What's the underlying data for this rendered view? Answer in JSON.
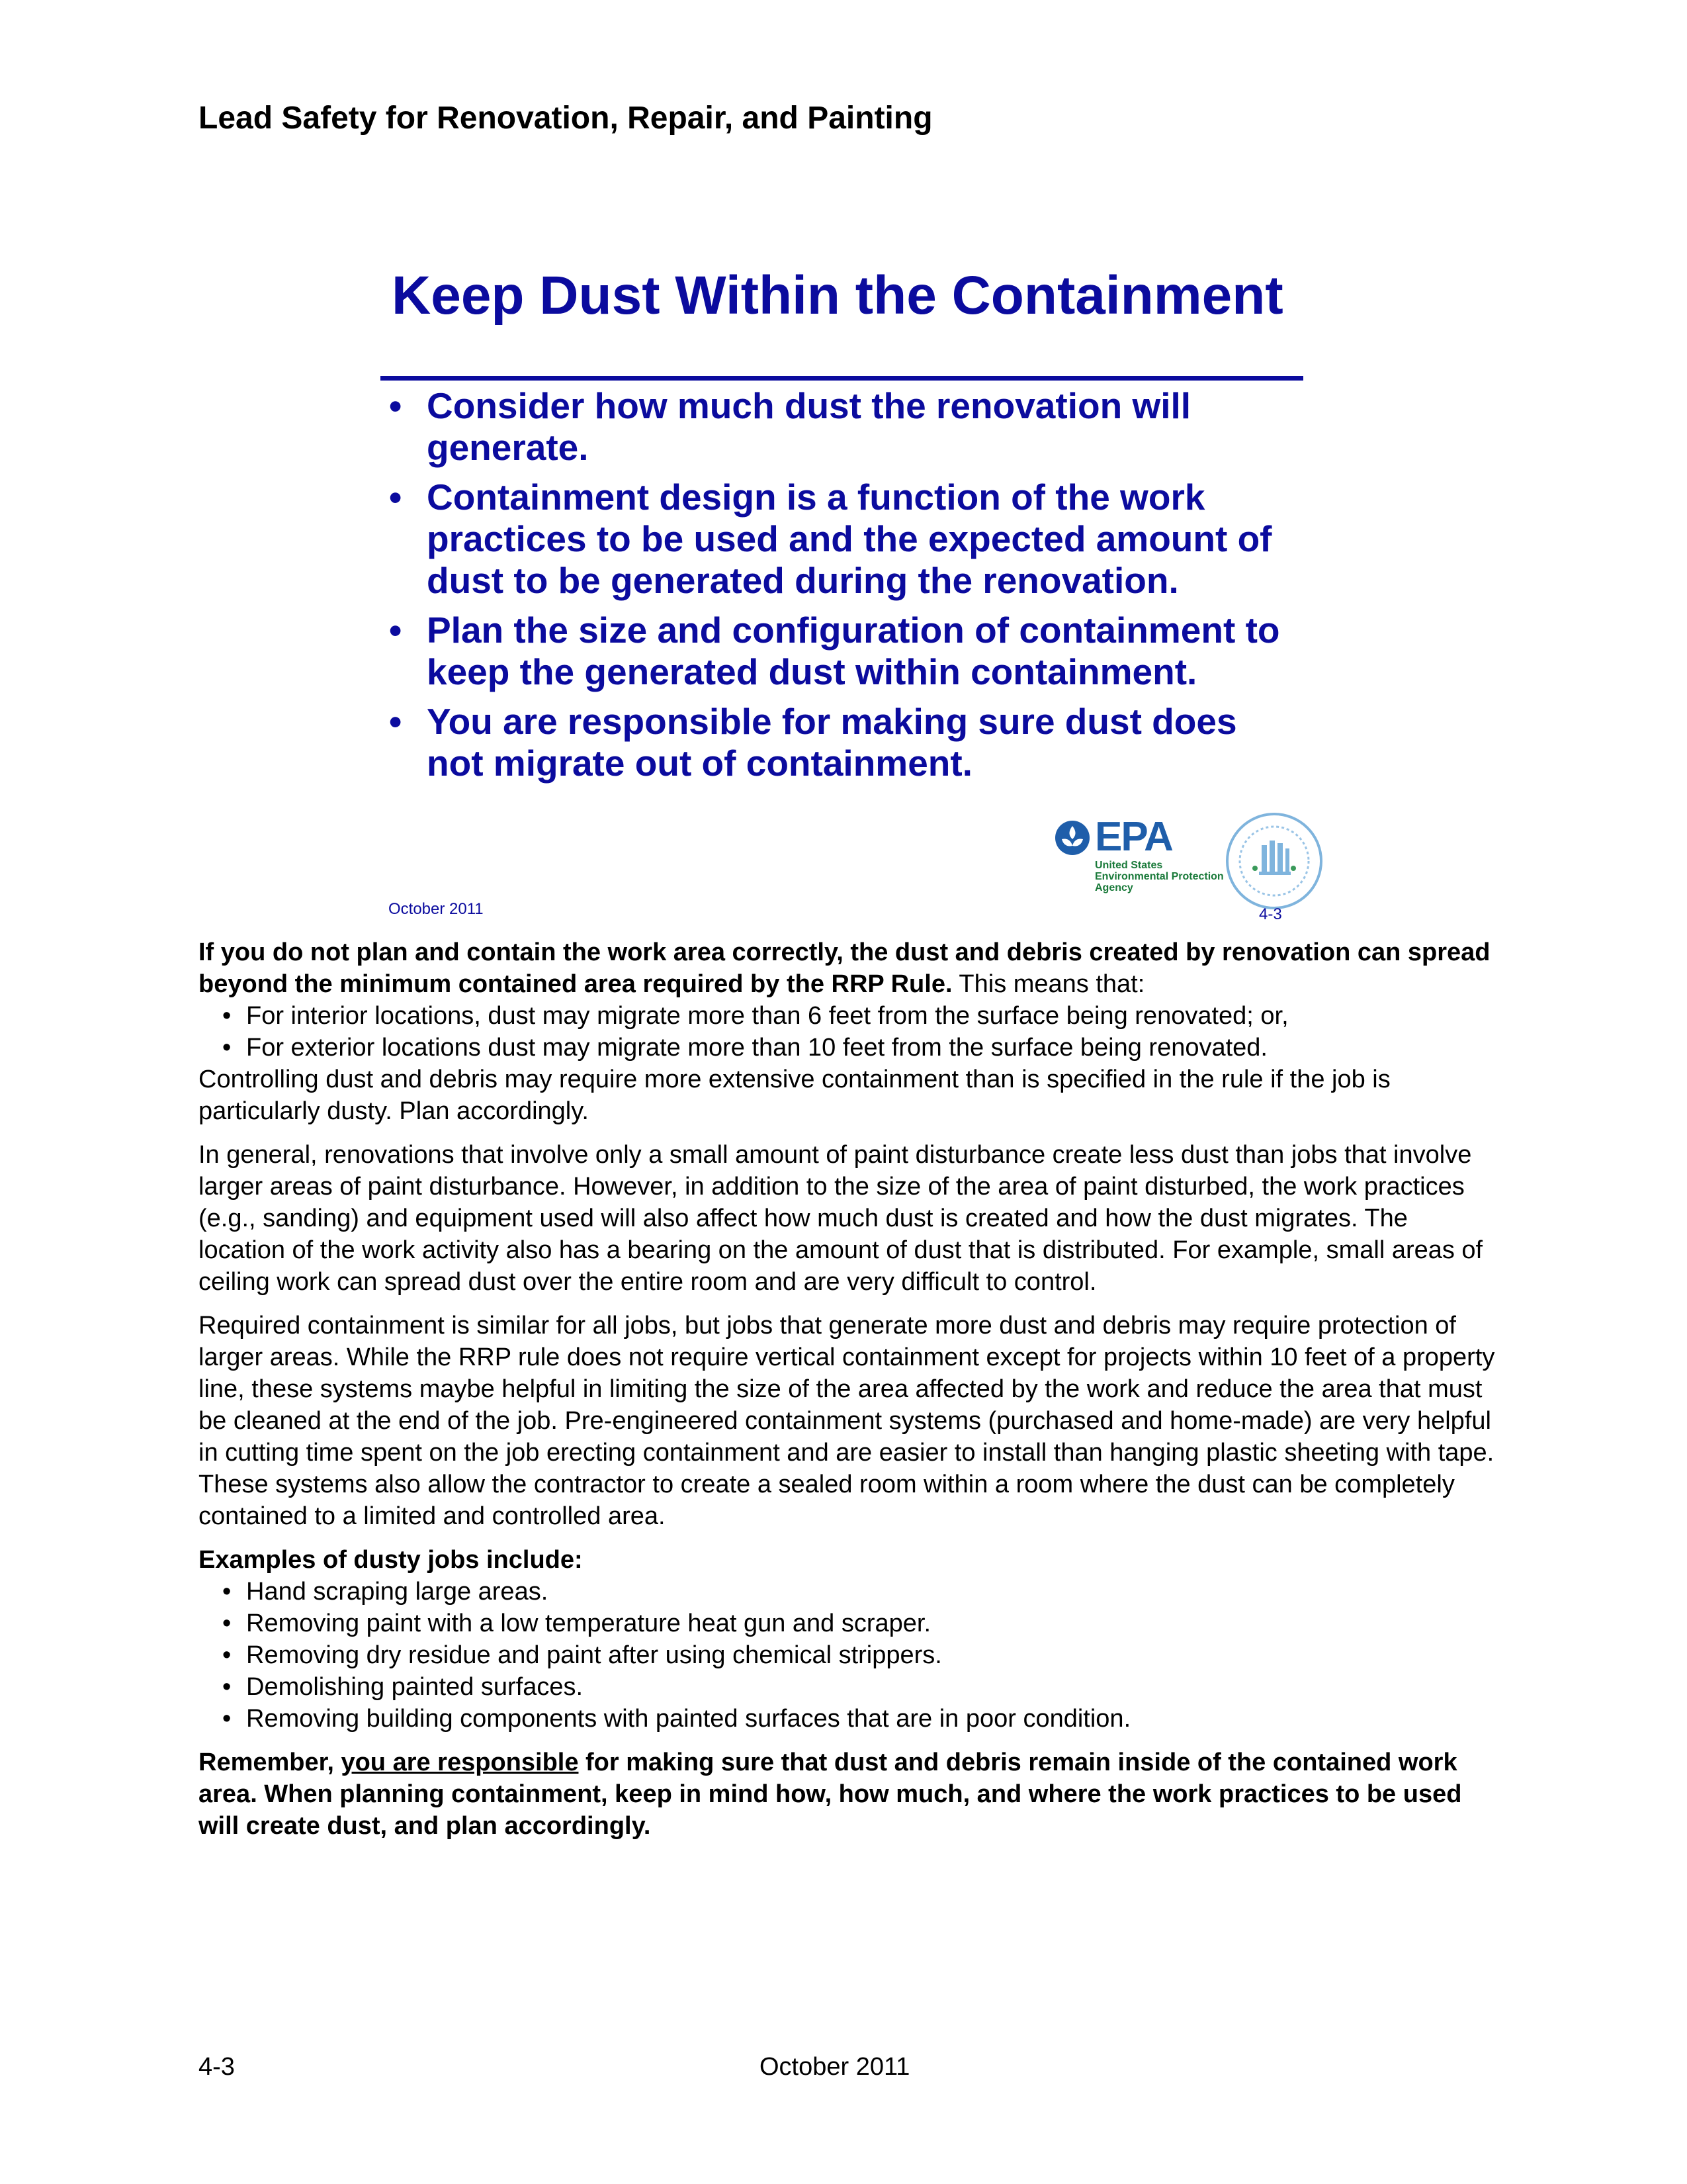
{
  "header": {
    "running_title": "Lead Safety for Renovation, Repair, and Painting"
  },
  "slide": {
    "title": "Keep Dust Within the Containment",
    "bullets": [
      "Consider how much dust the renovation will generate.",
      "Containment design is a function of the work practices to be used and the expected amount of dust to be generated during the renovation.",
      "Plan the size and configuration of containment to keep the generated dust within containment.",
      "You are responsible for making sure dust does not migrate out of containment."
    ],
    "bullet_symbol": "•",
    "footer_date": "October 2011",
    "footer_page": "4-3",
    "epa_logo": {
      "word": "EPA",
      "agency": "United States\nEnvironmental Protection\nAgency",
      "icon": "epa-flower-icon"
    },
    "hud_seal": {
      "icon": "hud-seal-icon"
    },
    "colors": {
      "accent": "#0b0b9e",
      "epa_blue": "#1f5eaa",
      "epa_green": "#1a7a3a"
    }
  },
  "notes": {
    "intro_bold": "If you do not plan and contain the work area correctly, the dust and debris created by renovation can spread beyond the minimum contained area required by the RRP Rule.",
    "intro_rest": " This means that:",
    "intro_items": [
      "For interior locations, dust may migrate more than 6 feet from the surface being renovated; or,",
      "For exterior locations dust may migrate more than 10 feet from the surface being renovated."
    ],
    "intro_followup": "Controlling dust and debris may require more extensive containment than is specified in the rule if the job is particularly dusty. Plan accordingly.",
    "para_general": "In general, renovations that involve only a small amount of paint disturbance create less dust than jobs that involve larger areas of paint disturbance. However, in addition to the size of the area of paint disturbed, the work practices (e.g., sanding) and equipment used will also affect how much dust is created and how the dust migrates. The location of the work activity also has a bearing on the amount of dust that is distributed. For example, small areas of ceiling work can spread dust over the entire room and are very difficult to control.",
    "para_required": "Required containment is similar for all jobs, but jobs that generate more dust and debris may require protection of larger areas. While the RRP rule does not require vertical containment except for projects within 10 feet of a property line, these systems maybe helpful in limiting the size of the area affected by the work and reduce the area that must be cleaned at the end of the job. Pre-engineered containment systems (purchased and home-made) are very helpful in cutting time spent on the job erecting containment and are easier to install than hanging plastic sheeting with tape. These systems also allow the contractor to create a sealed room within a room where the dust can be completely contained to a limited and controlled area.",
    "examples_heading": "Examples of dusty jobs include:",
    "examples": [
      "Hand scraping large areas.",
      "Removing paint with a low temperature heat gun and scraper.",
      "Removing dry residue and paint after using chemical strippers.",
      "Demolishing painted surfaces.",
      "Removing building components with painted surfaces that are in poor condition."
    ],
    "remember_start": "Remember, ",
    "remember_underlined": "you are responsible",
    "remember_end": " for making sure that dust and debris remain inside of the contained work area. When planning containment, keep in mind how, how much, and where the work practices to be used will create dust, and plan accordingly."
  },
  "footer": {
    "page_number": "4-3",
    "date": "October 2011"
  }
}
